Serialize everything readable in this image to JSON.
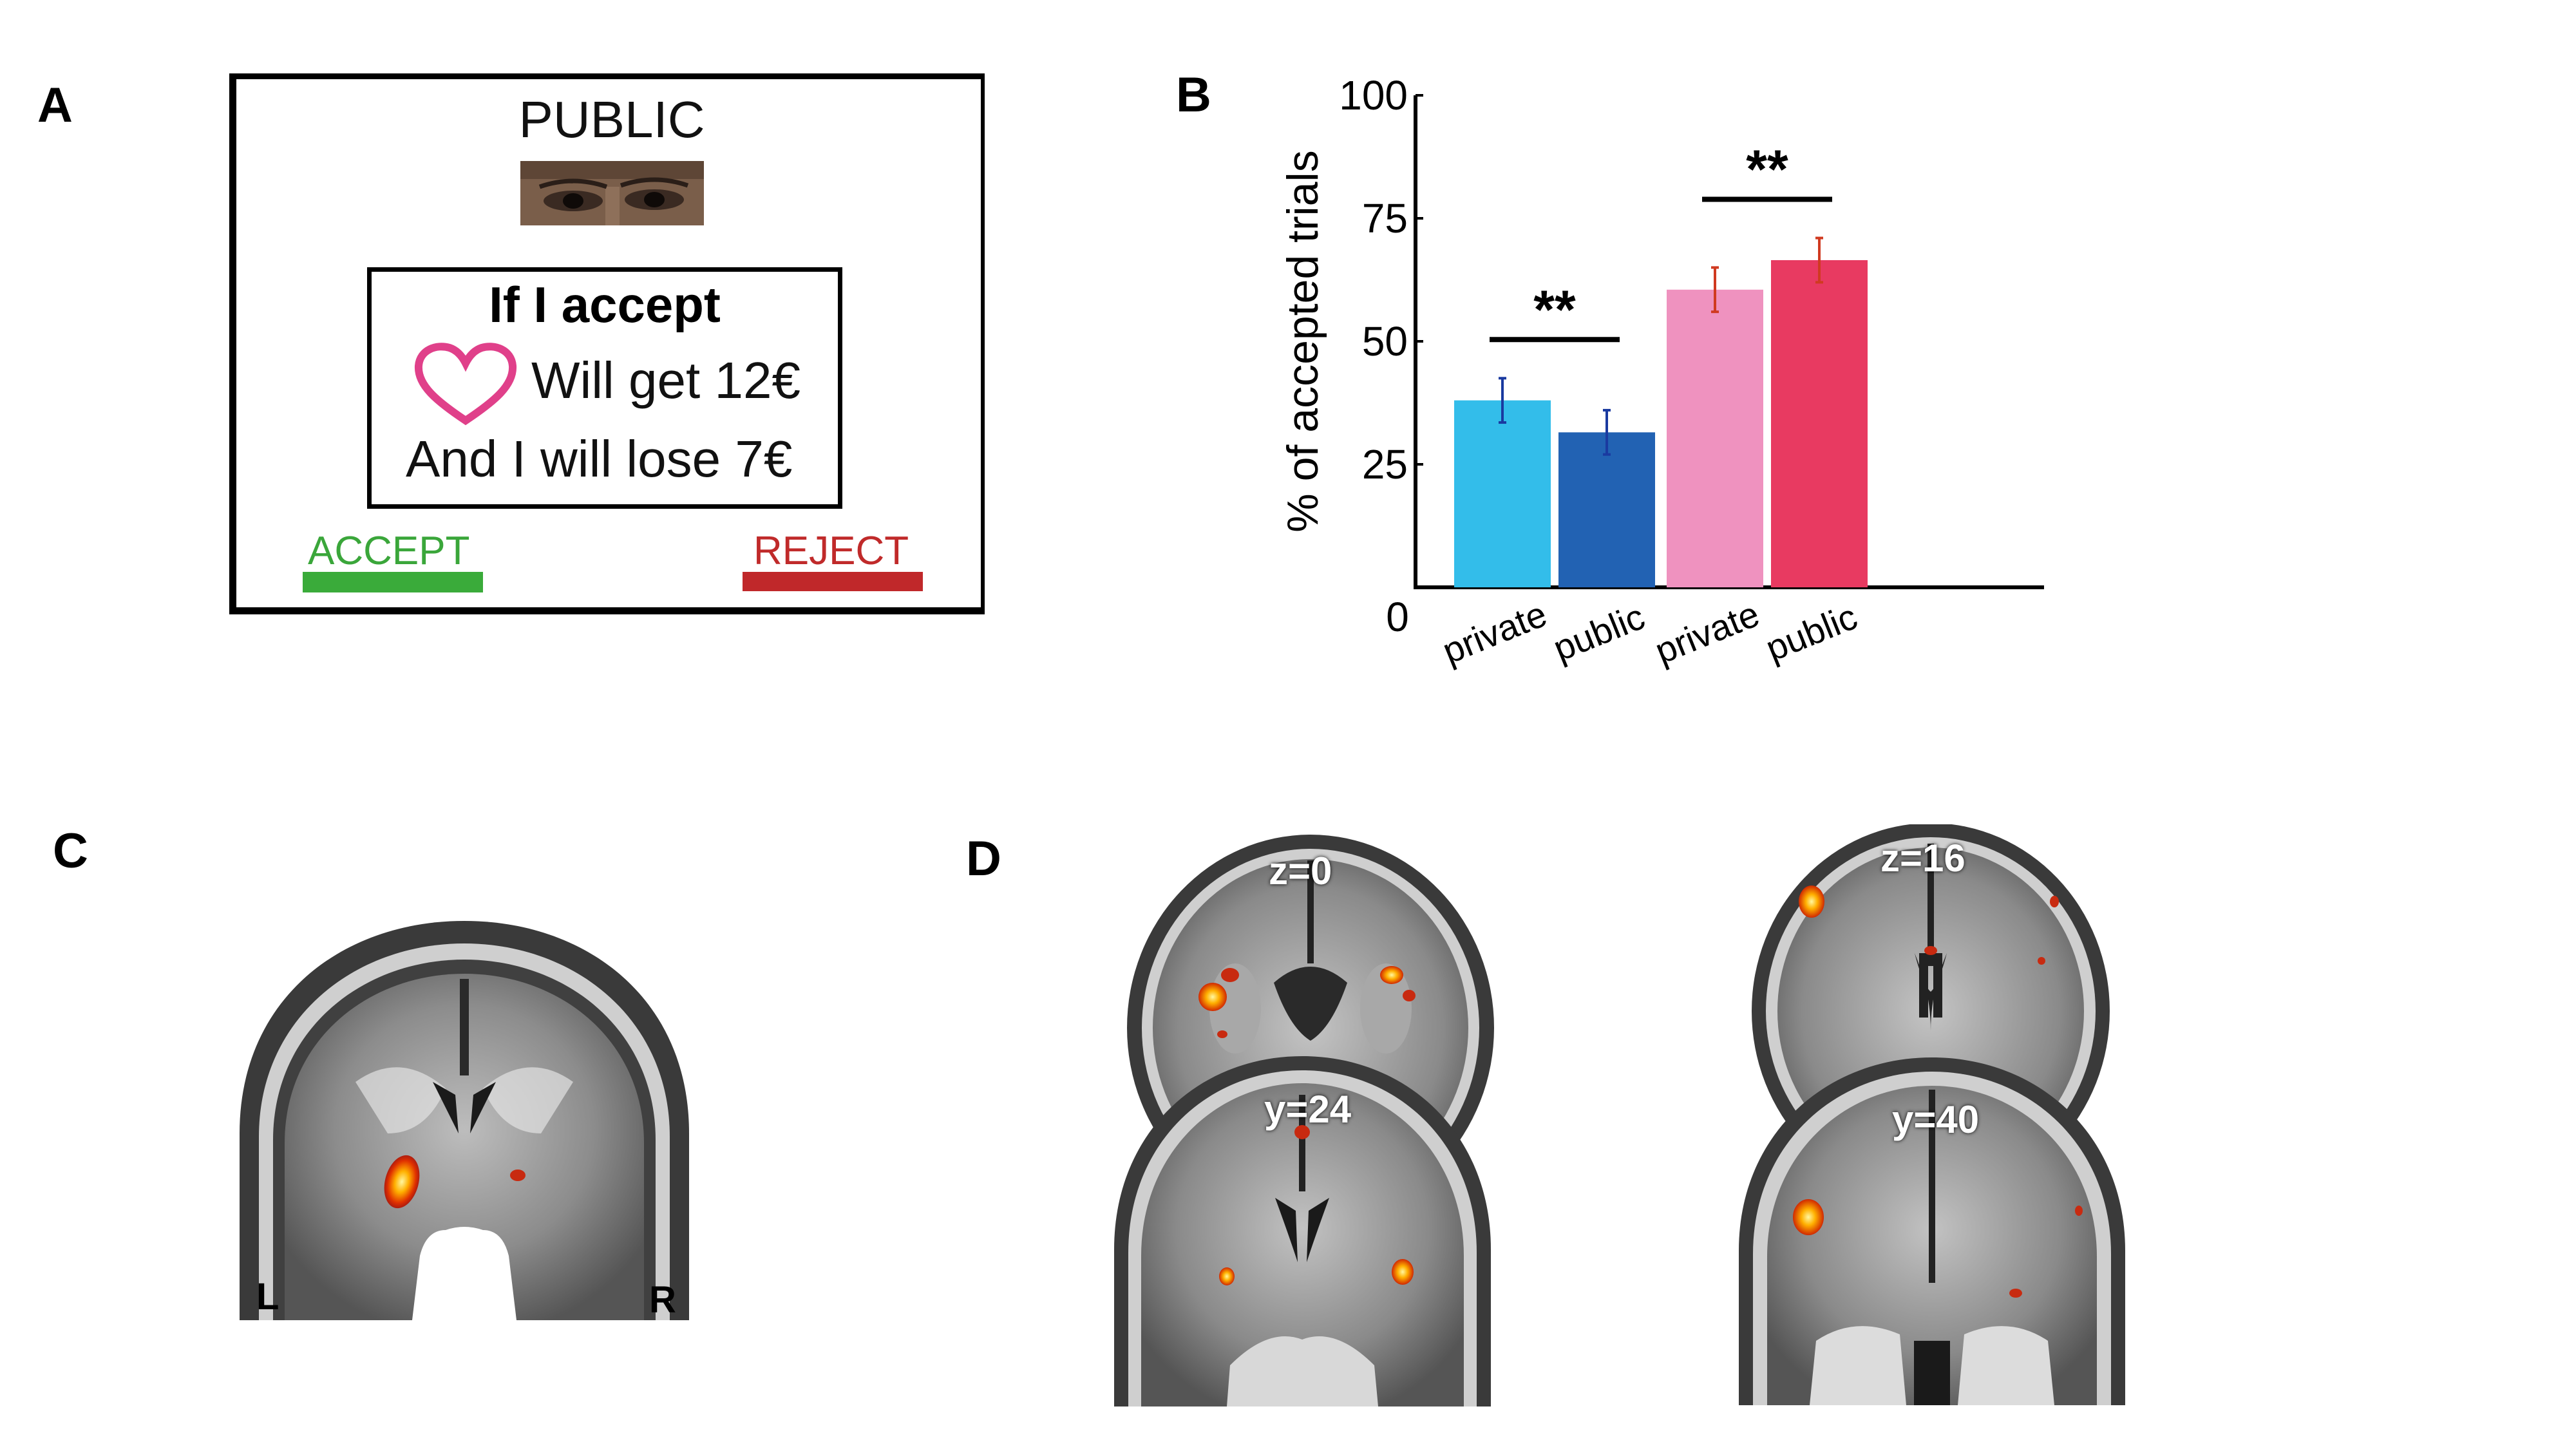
{
  "panel_letters": [
    "A",
    "B",
    "C",
    "D"
  ],
  "panel_a": {
    "condition": "PUBLIC",
    "offer_title": "If I accept",
    "offer_get": "Will get 12€",
    "offer_lose": "And I will lose 7€",
    "accept_label": "ACCEPT",
    "reject_label": "REJECT",
    "colors": {
      "heart": "#e0408a",
      "accept": "#3aab3a",
      "reject": "#c0282a"
    },
    "icons": [
      "eyes-photo",
      "heart-icon"
    ]
  },
  "chart_data": {
    "type": "bar",
    "categories": [
      "private",
      "public",
      "private",
      "public"
    ],
    "values": [
      38,
      31.5,
      60.5,
      66.5
    ],
    "errors": [
      4.5,
      4.5,
      4.5,
      4.5
    ],
    "bar_colors": [
      "#33bdea",
      "#2262b3",
      "#ef92bf",
      "#e83a61"
    ],
    "error_colors": [
      "#1a3aa0",
      "#1a3aa0",
      "#d03a20",
      "#d03a20"
    ],
    "ylabel": "% of accepted trials",
    "yticks": [
      25,
      50,
      75,
      100
    ],
    "ylim": [
      0,
      100
    ],
    "origin_label": "0",
    "significance": [
      {
        "between": [
          0,
          1
        ],
        "label": "**"
      },
      {
        "between": [
          2,
          3
        ],
        "label": "**"
      }
    ],
    "grid": false,
    "legend": "none"
  },
  "panel_c": {
    "left_label": "L",
    "right_label": "R"
  },
  "panel_d": {
    "slices": [
      "z=0",
      "y=24",
      "z=16",
      "y=40"
    ]
  }
}
